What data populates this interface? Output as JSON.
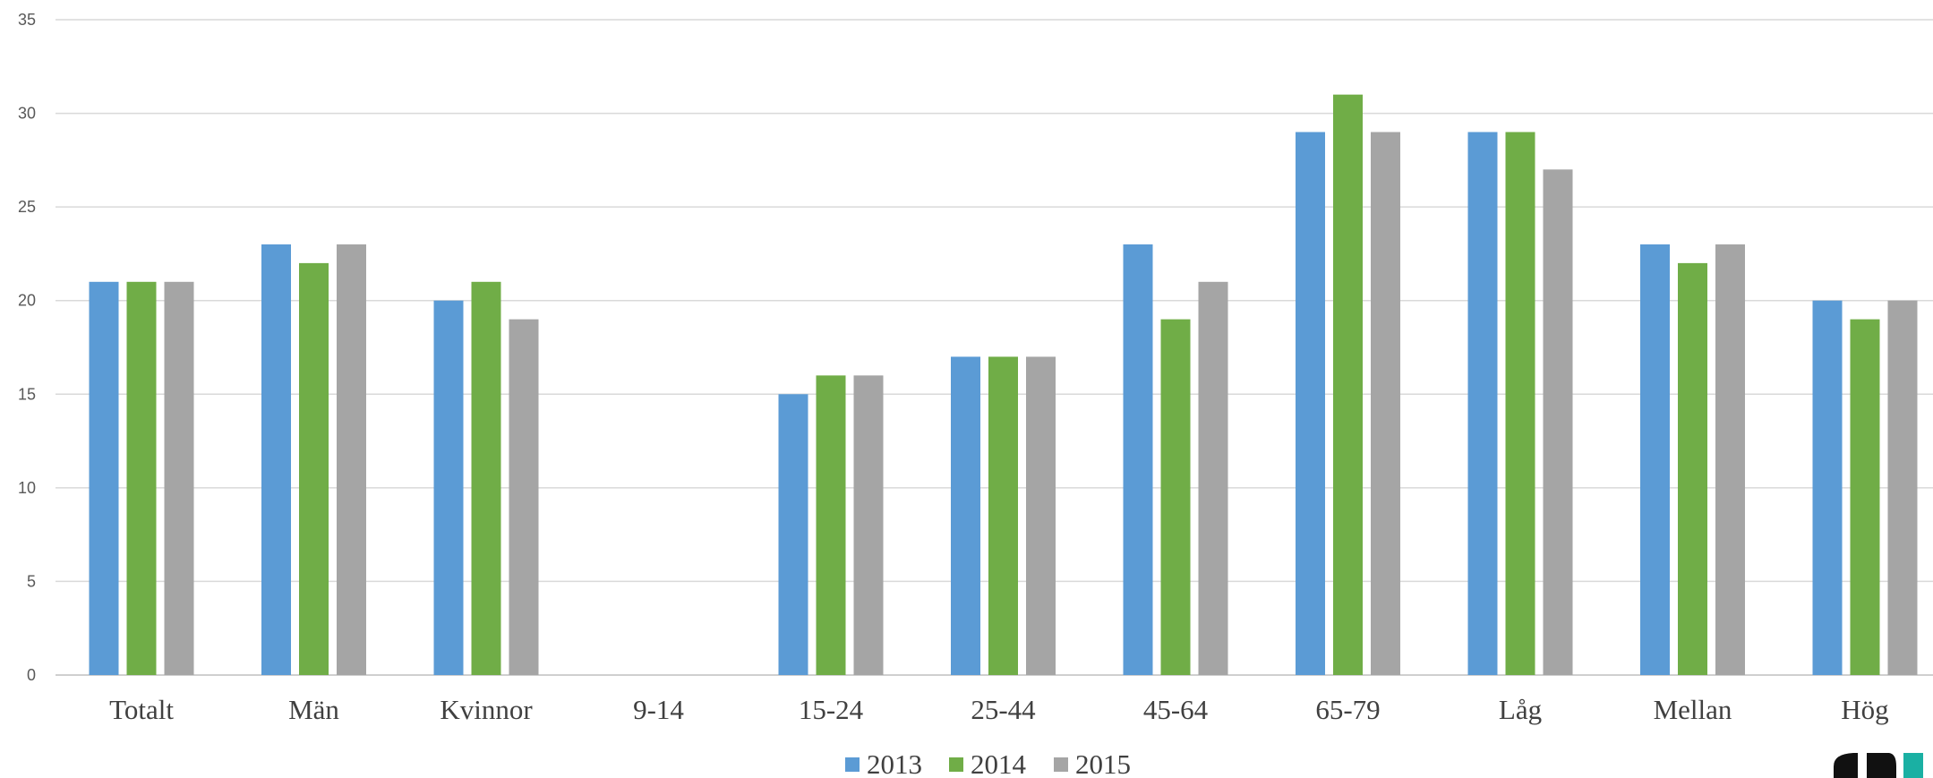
{
  "chart_data": {
    "type": "bar",
    "categories": [
      "Totalt",
      "Män",
      "Kvinnor",
      "9-14",
      "15-24",
      "25-44",
      "45-64",
      "65-79",
      "Låg",
      "Mellan",
      "Hög"
    ],
    "series": [
      {
        "name": "2013",
        "color": "#5b9bd5",
        "values": [
          21,
          23,
          20,
          null,
          15,
          17,
          23,
          29,
          29,
          23,
          20
        ]
      },
      {
        "name": "2014",
        "color": "#70ad47",
        "values": [
          21,
          22,
          21,
          null,
          16,
          17,
          19,
          31,
          29,
          22,
          19
        ]
      },
      {
        "name": "2015",
        "color": "#a5a5a5",
        "values": [
          21,
          23,
          19,
          null,
          16,
          17,
          21,
          29,
          27,
          23,
          20
        ]
      }
    ],
    "yticks": [
      "0",
      "5",
      "10",
      "15",
      "20",
      "25",
      "30",
      "35"
    ],
    "ylim": [
      0,
      35
    ],
    "grid": true,
    "legend_position": "bottom-center"
  },
  "logo": {
    "icon": "publisher-logo-icon"
  }
}
